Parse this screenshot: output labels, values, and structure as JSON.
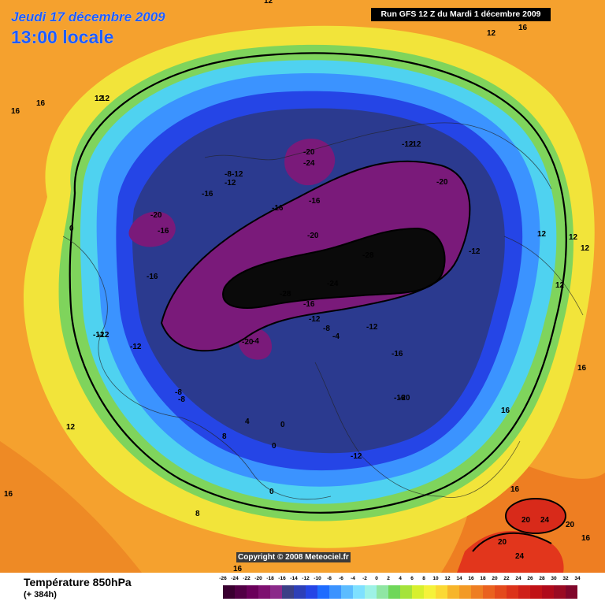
{
  "header": {
    "date_label": "Jeudi 17 décembre 2009",
    "time_label": "13:00 locale",
    "run_label": "Run GFS 12 Z du Mardi 1 décembre 2009"
  },
  "copyright": "Copyright © 2008 Meteociel.fr",
  "footer": {
    "title": "Température 850hPa",
    "subtitle": "(+ 384h)"
  },
  "scale": {
    "labels": [
      "-26",
      "-24",
      "-22",
      "-20",
      "-18",
      "-16",
      "-14",
      "-12",
      "-10",
      "-8",
      "-6",
      "-4",
      "-2",
      "0",
      "2",
      "4",
      "6",
      "8",
      "10",
      "12",
      "14",
      "16",
      "18",
      "20",
      "22",
      "24",
      "26",
      "28",
      "30",
      "32",
      "34"
    ],
    "colors": [
      "#3a0030",
      "#520045",
      "#6a005a",
      "#7e1070",
      "#8b2a8a",
      "#3b3f86",
      "#2d3fb8",
      "#2545e6",
      "#1e6cff",
      "#3b93ff",
      "#5cbcff",
      "#7ee0ff",
      "#9df2e6",
      "#8fe6a3",
      "#6fd75a",
      "#a5e33a",
      "#d7f02e",
      "#f5f23a",
      "#fbd934",
      "#f7b52a",
      "#f39a25",
      "#ee7e22",
      "#ea621f",
      "#e44a1c",
      "#dc331a",
      "#cf2018",
      "#c11216",
      "#b00a1a",
      "#9a0a22",
      "#80062a"
    ],
    "scale_unit_note": ""
  },
  "map": {
    "colors": {
      "background": "#f5a12e",
      "warm_edge": "#ee7e22",
      "hot_spot": "#e2361c",
      "yellow_ring": "#f3e43a",
      "green_ring": "#7ed35e",
      "cyan_ring": "#4fd2f0",
      "light_blue": "#3b93ff",
      "blue": "#2545e6",
      "navy": "#2b3a8f",
      "purple": "#7a1a7a",
      "dark_core": "#0a0a0a"
    },
    "contour_labels": [
      "12",
      "16",
      "12",
      "12",
      "16",
      "12",
      "16",
      "16",
      "12",
      "16",
      "12",
      "12",
      "12",
      "16",
      "16",
      "12",
      "8",
      "4",
      "0",
      "0",
      "0",
      "8",
      "16",
      "20",
      "24",
      "24",
      "20",
      "16",
      "20",
      "-12",
      "-20",
      "-24",
      "-20",
      "-16",
      "-16",
      "-8",
      "-12",
      "-12",
      "-16",
      "-20",
      "-16",
      "-16",
      "-20",
      "-28",
      "-24",
      "-28",
      "-16",
      "-12",
      "-8",
      "-4",
      "-12",
      "-16",
      "-16",
      "-12",
      "-20",
      "-4",
      "-12",
      "-12",
      "-8",
      "-8",
      "-12",
      "0",
      "-20",
      "-12",
      "-12"
    ]
  }
}
